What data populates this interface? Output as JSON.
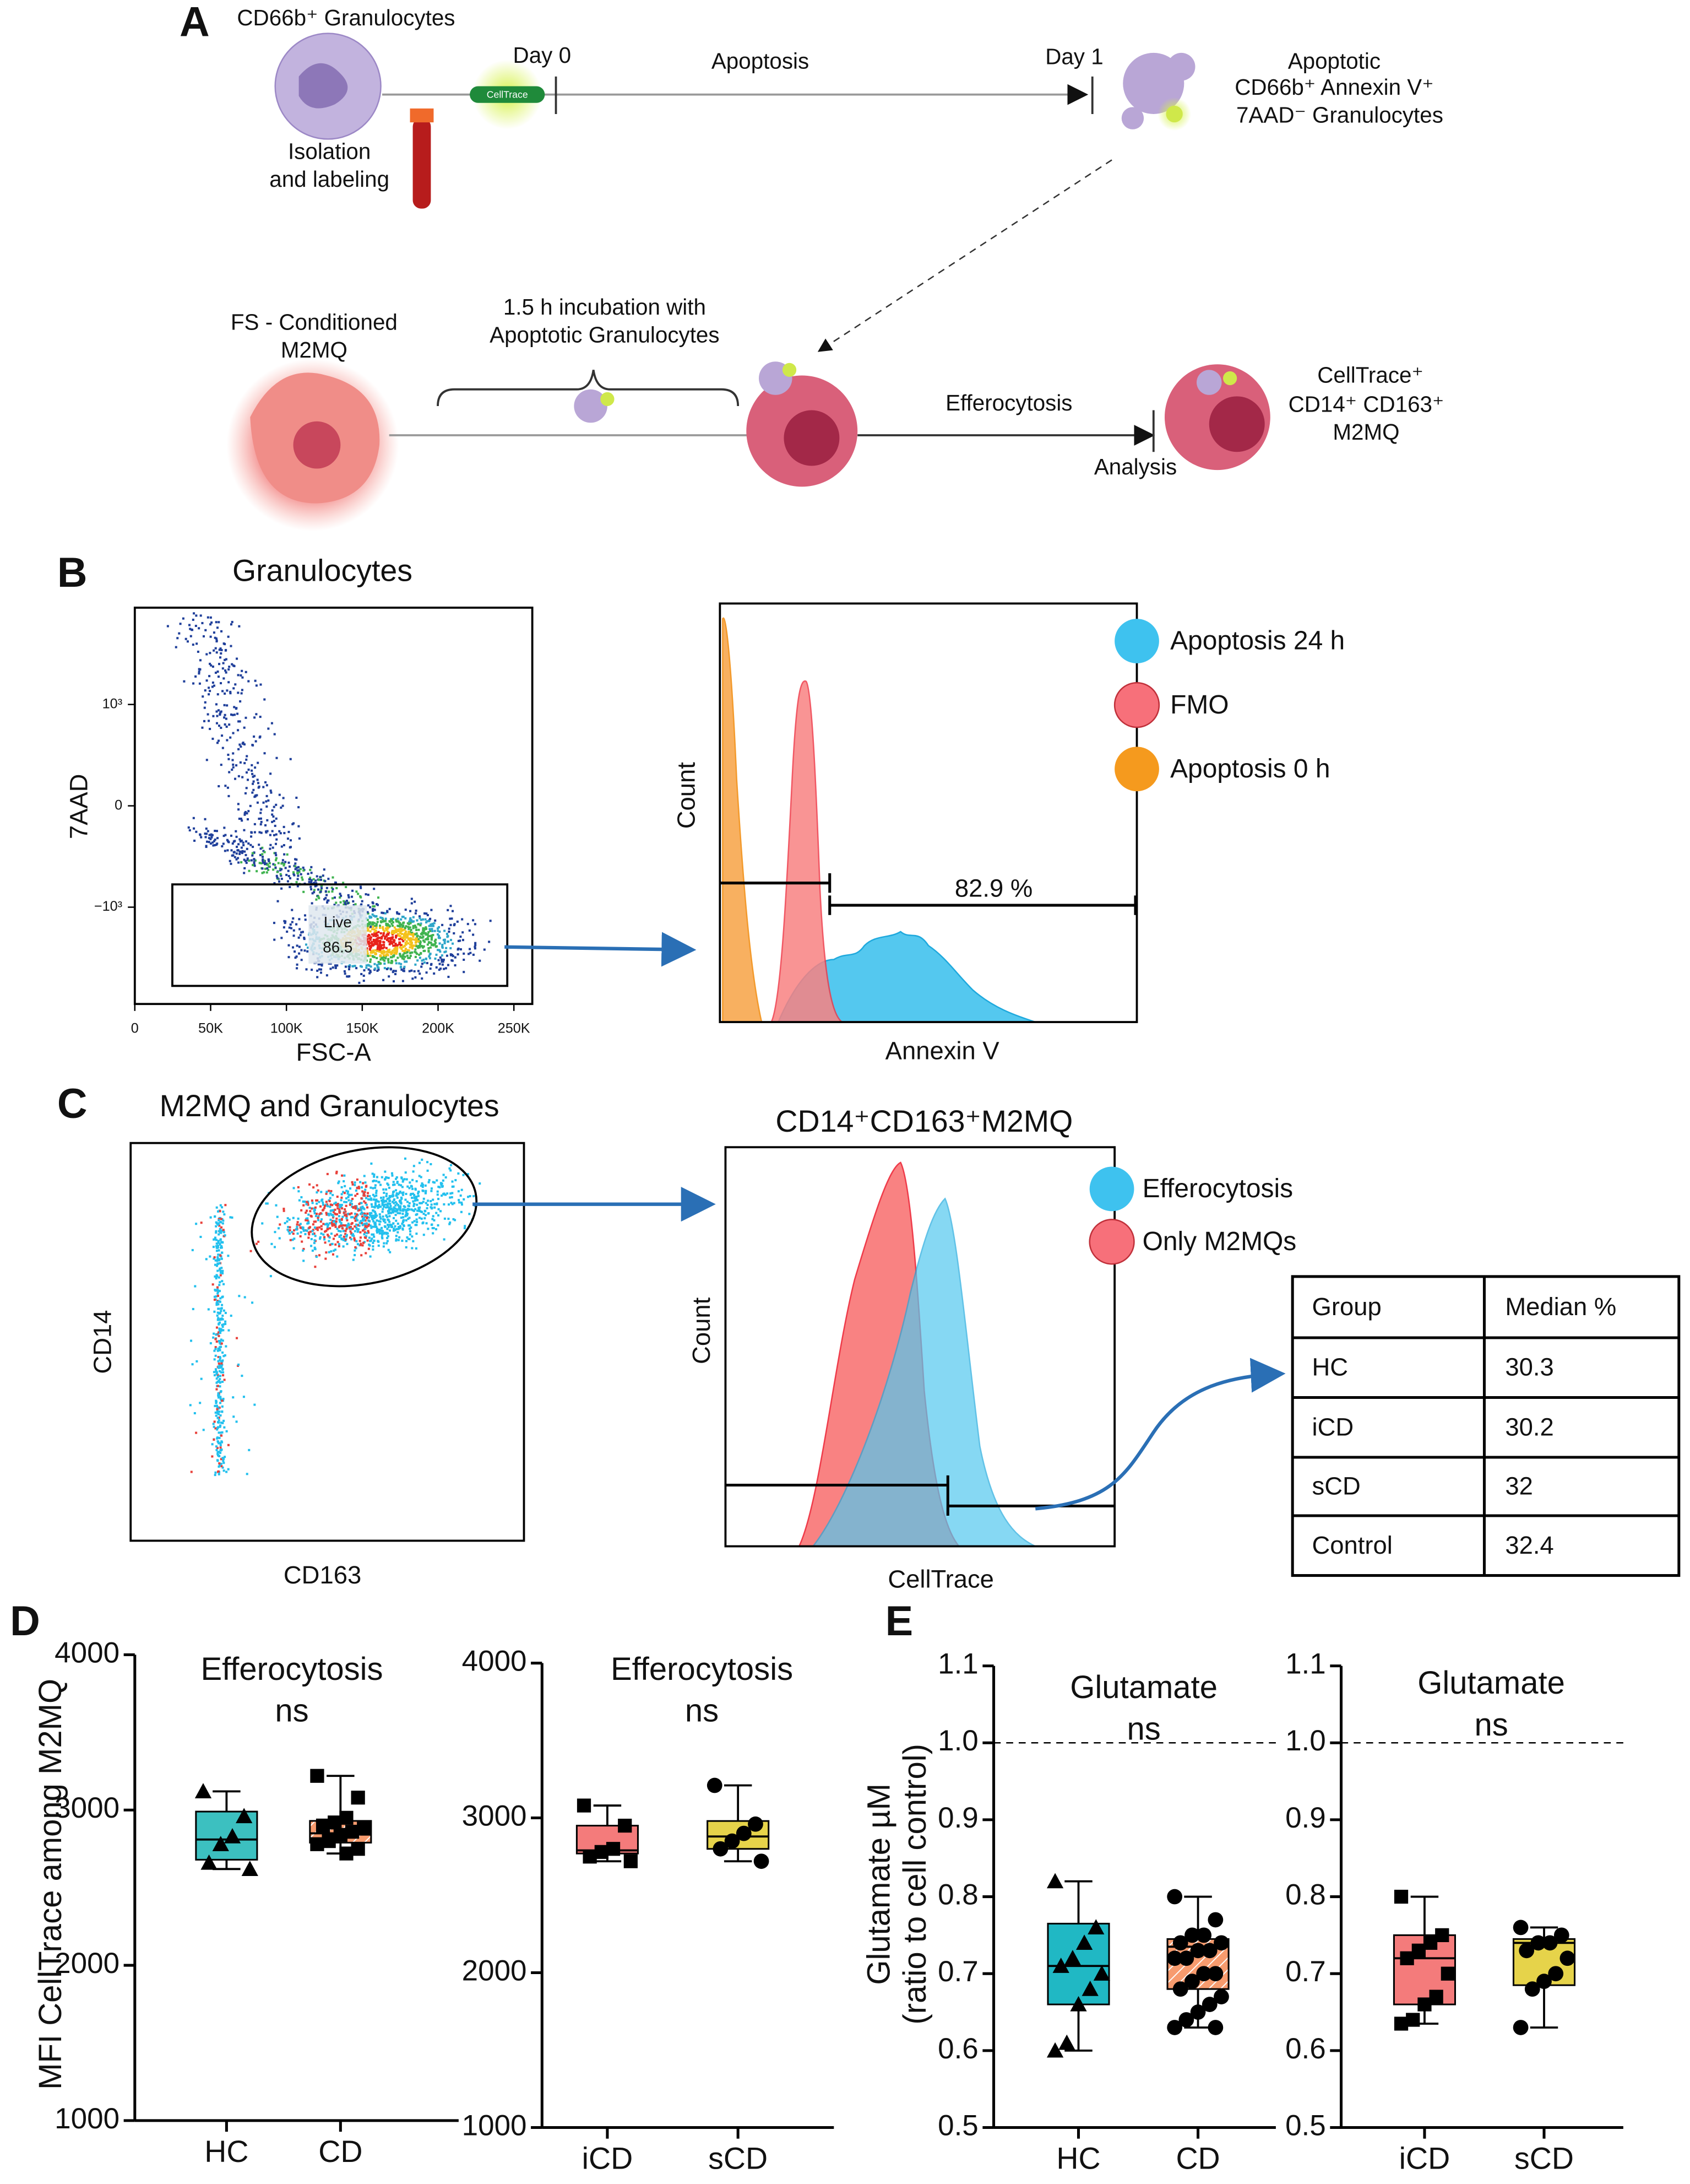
{
  "panelA": {
    "letter": "A",
    "granulocytes": "CD66b⁺ Granulocytes",
    "isolation": [
      "Isolation",
      "and labeling"
    ],
    "dye": "CellTrace",
    "day0": "Day 0",
    "apoptosis": "Apoptosis",
    "day1": "Day 1",
    "apoptotic": [
      "Apoptotic",
      "CD66b⁺ Annexin V⁺",
      "7AAD⁻ Granulocytes"
    ],
    "macrophage": [
      "FS - Conditioned",
      "M2MQ"
    ],
    "incubation": [
      "1.5 h incubation with",
      "Apoptotic Granulocytes"
    ],
    "efferocytosis": "Efferocytosis",
    "analysis": "Analysis",
    "result": [
      "CellTrace⁺",
      "CD14⁺ CD163⁺",
      "M2MQ"
    ]
  },
  "panelB": {
    "letter": "B",
    "scatter": {
      "title": "Granulocytes",
      "xlabel": "FSC-A",
      "ylabel": "7AAD",
      "xlim": [
        0,
        262144
      ],
      "xticks": [
        0,
        {
          "value": 50000,
          "label": "50K"
        },
        {
          "value": 100000,
          "label": "100K"
        },
        {
          "value": 150000,
          "label": "150K"
        },
        {
          "value": 200000,
          "label": "200K"
        },
        {
          "value": 250000,
          "label": "250K"
        }
      ],
      "yscale": "asinh",
      "yscale_cofactor": 150,
      "ylim": [
        -12000,
        12000
      ],
      "yticks": [
        {
          "value": 1000,
          "label": "10³"
        },
        0,
        {
          "value": -1000,
          "label": "−10³"
        }
      ],
      "gate": "Live",
      "gate_value": "86.5"
    },
    "histogram": {
      "ylabel": "Count",
      "xlabel": "Annexin V",
      "gate_value": "82.9 %",
      "legend": [
        {
          "name": "Apoptosis 24 h",
          "color": "#3ec2ef"
        },
        {
          "name": "FMO",
          "color": "#f7707a"
        },
        {
          "name": "Apoptosis 0 h",
          "color": "#f59a1e"
        }
      ]
    }
  },
  "panelC": {
    "letter": "C",
    "scatter": {
      "title": "M2MQ and Granulocytes",
      "xlabel": "CD163",
      "ylabel": "CD14"
    },
    "histogram": {
      "title": "CD14⁺CD163⁺M2MQ",
      "ylabel": "Count",
      "xlabel": "CellTrace",
      "legend": [
        {
          "name": "Efferocytosis",
          "color": "#3ec2ef"
        },
        {
          "name": "Only M2MQs",
          "color": "#f7707a"
        }
      ]
    },
    "table": {
      "header": [
        "Group",
        "Median %"
      ],
      "rows": [
        [
          "HC",
          "30.3"
        ],
        [
          "iCD",
          "30.2"
        ],
        [
          "sCD",
          "32"
        ],
        [
          "Control",
          "32.4"
        ]
      ]
    }
  },
  "letters": {
    "D": "D",
    "E": "E"
  },
  "chart_data": [
    {
      "type": "box",
      "title": "Efferocytosis",
      "annotation": "ns",
      "ylabel": [
        "MFI CellTrace among M2MQ"
      ],
      "ylim": [
        1000,
        4000
      ],
      "yticks": [
        1000,
        2000,
        3000,
        4000
      ],
      "categories": [
        "HC",
        "CD"
      ],
      "boxes": [
        {
          "min": 2620,
          "q1": 2680,
          "median": 2810,
          "q3": 2990,
          "max": 3120,
          "color": "#3cc0c0",
          "marker": "triangle",
          "points": [
            3120,
            2960,
            2830,
            2780,
            2660,
            2620
          ]
        },
        {
          "min": 2720,
          "q1": 2790,
          "median": 2850,
          "q3": 2930,
          "max": 3220,
          "color": "#f79b6e",
          "hatch": true,
          "marker": "square",
          "points": [
            3220,
            3080,
            2950,
            2920,
            2900,
            2880,
            2860,
            2840,
            2800,
            2780,
            2750,
            2720
          ]
        }
      ]
    },
    {
      "type": "box",
      "title": "Efferocytosis",
      "annotation": "ns",
      "ylim": [
        1000,
        4000
      ],
      "yticks": [
        1000,
        2000,
        3000,
        4000
      ],
      "categories": [
        "iCD",
        "sCD"
      ],
      "boxes": [
        {
          "min": 2720,
          "q1": 2770,
          "median": 2790,
          "q3": 2950,
          "max": 3080,
          "color": "#f47b7b",
          "marker": "square",
          "points": [
            3080,
            2950,
            2800,
            2780,
            2750,
            2720
          ]
        },
        {
          "min": 2720,
          "q1": 2800,
          "median": 2880,
          "q3": 2980,
          "max": 3210,
          "color": "#e6d34a",
          "marker": "circle",
          "points": [
            3210,
            2960,
            2900,
            2850,
            2800,
            2720
          ]
        }
      ]
    },
    {
      "type": "box",
      "title": "Glutamate",
      "annotation": "ns",
      "ylabel": [
        "Glutamate µM",
        "(ratio to cell control)"
      ],
      "ylim": [
        0.5,
        1.1
      ],
      "yticks": [
        0.5,
        0.6,
        0.7,
        0.8,
        0.9,
        {
          "value": 1,
          "label": "1.0"
        },
        1.1
      ],
      "reference_line": 1,
      "categories": [
        "HC",
        "CD"
      ],
      "boxes": [
        {
          "min": 0.6,
          "q1": 0.66,
          "median": 0.71,
          "q3": 0.765,
          "max": 0.82,
          "color": "#20b8c4",
          "marker": "triangle",
          "points": [
            0.82,
            0.76,
            0.74,
            0.72,
            0.71,
            0.7,
            0.68,
            0.66,
            0.61,
            0.6
          ]
        },
        {
          "min": 0.63,
          "q1": 0.68,
          "median": 0.735,
          "q3": 0.745,
          "max": 0.8,
          "color": "#f79b6e",
          "hatch": true,
          "marker": "circle",
          "points": [
            0.8,
            0.77,
            0.75,
            0.75,
            0.74,
            0.74,
            0.73,
            0.73,
            0.72,
            0.72,
            0.7,
            0.7,
            0.69,
            0.68,
            0.67,
            0.66,
            0.65,
            0.64,
            0.63,
            0.63
          ]
        }
      ]
    },
    {
      "type": "box",
      "title": "Glutamate",
      "annotation": "ns",
      "ylim": [
        0.5,
        1.1
      ],
      "yticks": [
        0.5,
        0.6,
        0.7,
        0.8,
        0.9,
        {
          "value": 1,
          "label": "1.0"
        },
        1.1
      ],
      "reference_line": 1,
      "categories": [
        "iCD",
        "sCD"
      ],
      "boxes": [
        {
          "min": 0.635,
          "q1": 0.66,
          "median": 0.72,
          "q3": 0.75,
          "max": 0.8,
          "color": "#f47b7b",
          "marker": "square",
          "points": [
            0.8,
            0.75,
            0.74,
            0.73,
            0.72,
            0.7,
            0.67,
            0.66,
            0.64,
            0.635
          ]
        },
        {
          "min": 0.63,
          "q1": 0.685,
          "median": 0.74,
          "q3": 0.745,
          "max": 0.76,
          "color": "#e6d34a",
          "marker": "circle",
          "points": [
            0.76,
            0.75,
            0.74,
            0.74,
            0.73,
            0.72,
            0.7,
            0.69,
            0.68,
            0.63
          ]
        }
      ]
    }
  ]
}
